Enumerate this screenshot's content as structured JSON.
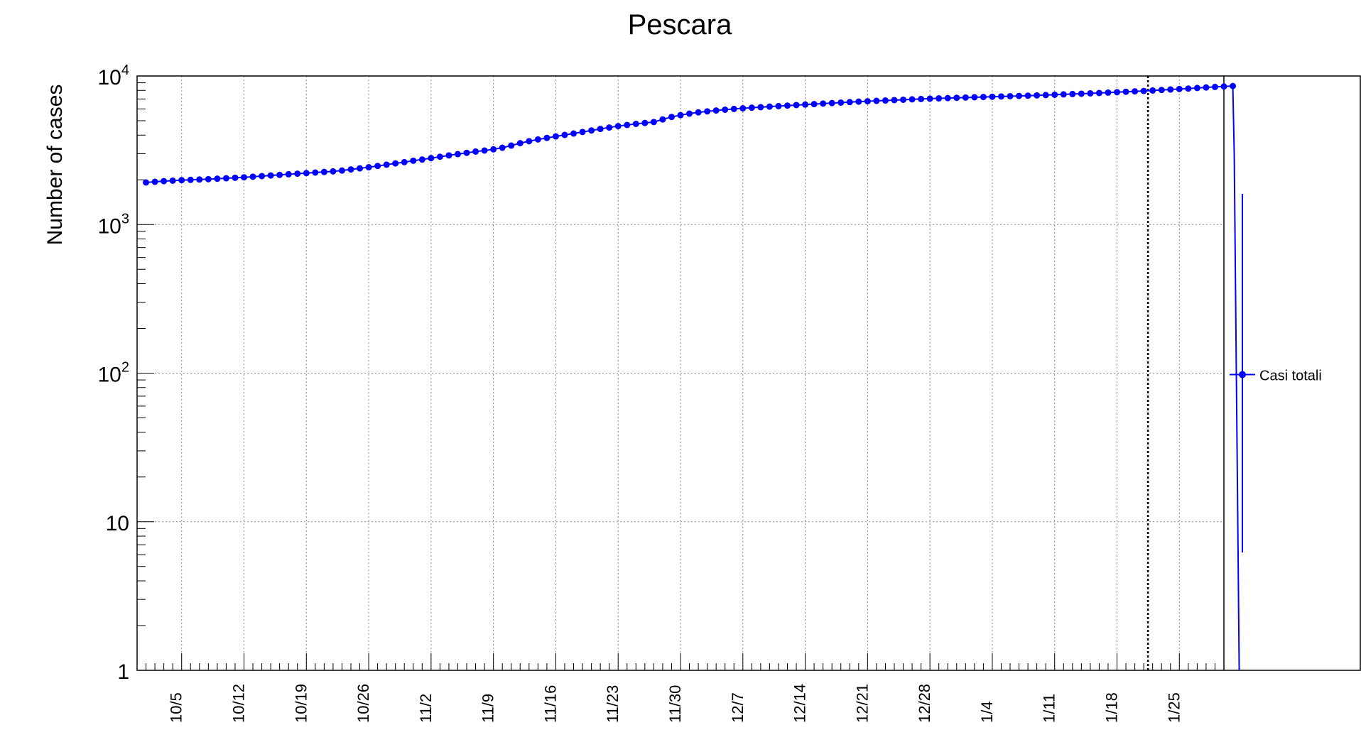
{
  "chart_data": {
    "type": "line",
    "title": "Pescara",
    "xlabel": "",
    "ylabel": "Number of cases",
    "y_scale": "log",
    "ylim": [
      1,
      10000
    ],
    "xlim": [
      "2020-09-30",
      "2021-01-30"
    ],
    "grid": true,
    "legend_position": "right",
    "x_tick_labels": [
      "10/5",
      "10/12",
      "10/19",
      "10/26",
      "11/2",
      "11/9",
      "11/16",
      "11/23",
      "11/30",
      "12/7",
      "12/14",
      "12/21",
      "12/28",
      "1/4",
      "1/11",
      "1/18",
      "1/25"
    ],
    "y_tick_labels": [
      "1",
      "10",
      "10^2",
      "10^3",
      "10^4"
    ],
    "vertical_marker": "2021-01-21",
    "series": [
      {
        "name": "Casi totali",
        "color": "#0000ff",
        "start_date": "2020-10-01",
        "values": [
          1920,
          1940,
          1960,
          1975,
          1990,
          2000,
          2010,
          2020,
          2035,
          2050,
          2065,
          2080,
          2100,
          2120,
          2140,
          2160,
          2180,
          2200,
          2220,
          2240,
          2260,
          2280,
          2310,
          2350,
          2390,
          2430,
          2480,
          2530,
          2580,
          2630,
          2690,
          2740,
          2800,
          2860,
          2920,
          2980,
          3040,
          3100,
          3150,
          3210,
          3290,
          3400,
          3530,
          3640,
          3740,
          3830,
          3920,
          4010,
          4100,
          4200,
          4300,
          4400,
          4500,
          4600,
          4680,
          4760,
          4830,
          4900,
          5100,
          5300,
          5450,
          5580,
          5690,
          5780,
          5860,
          5930,
          6000,
          6060,
          6120,
          6170,
          6220,
          6270,
          6320,
          6370,
          6420,
          6470,
          6520,
          6570,
          6620,
          6670,
          6720,
          6760,
          6800,
          6840,
          6880,
          6920,
          6960,
          7000,
          7040,
          7070,
          7100,
          7130,
          7160,
          7190,
          7220,
          7250,
          7280,
          7310,
          7340,
          7370,
          7400,
          7440,
          7480,
          7520,
          7560,
          7600,
          7640,
          7680,
          7730,
          7780,
          7830,
          7880,
          7930,
          7990,
          8050,
          8110,
          8170,
          8230,
          8300,
          8370,
          8440,
          8500,
          8560
        ]
      }
    ]
  }
}
